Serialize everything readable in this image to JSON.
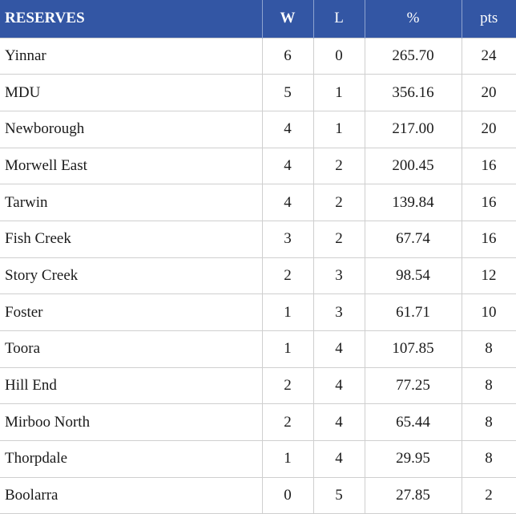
{
  "table": {
    "headers": [
      "RESERVES",
      "W",
      "L",
      "%",
      "pts"
    ],
    "rows": [
      [
        "Yinnar",
        "6",
        "0",
        "265.70",
        "24"
      ],
      [
        "MDU",
        "5",
        "1",
        "356.16",
        "20"
      ],
      [
        "Newborough",
        "4",
        "1",
        "217.00",
        "20"
      ],
      [
        "Morwell East",
        "4",
        "2",
        "200.45",
        "16"
      ],
      [
        "Tarwin",
        "4",
        "2",
        "139.84",
        "16"
      ],
      [
        "Fish Creek",
        "3",
        "2",
        "67.74",
        "16"
      ],
      [
        "Story Creek",
        "2",
        "3",
        "98.54",
        "12"
      ],
      [
        "Foster",
        "1",
        "3",
        "61.71",
        "10"
      ],
      [
        "Toora",
        "1",
        "4",
        "107.85",
        "8"
      ],
      [
        "Hill End",
        "2",
        "4",
        "77.25",
        "8"
      ],
      [
        "Mirboo North",
        "2",
        "4",
        "65.44",
        "8"
      ],
      [
        "Thorpdale",
        "1",
        "4",
        "29.95",
        "8"
      ],
      [
        "Boolarra",
        "0",
        "5",
        "27.85",
        "2"
      ]
    ]
  },
  "colors": {
    "header_bg": "#3356a4",
    "header_text": "#ffffff",
    "grid": "#cfcfcf"
  }
}
